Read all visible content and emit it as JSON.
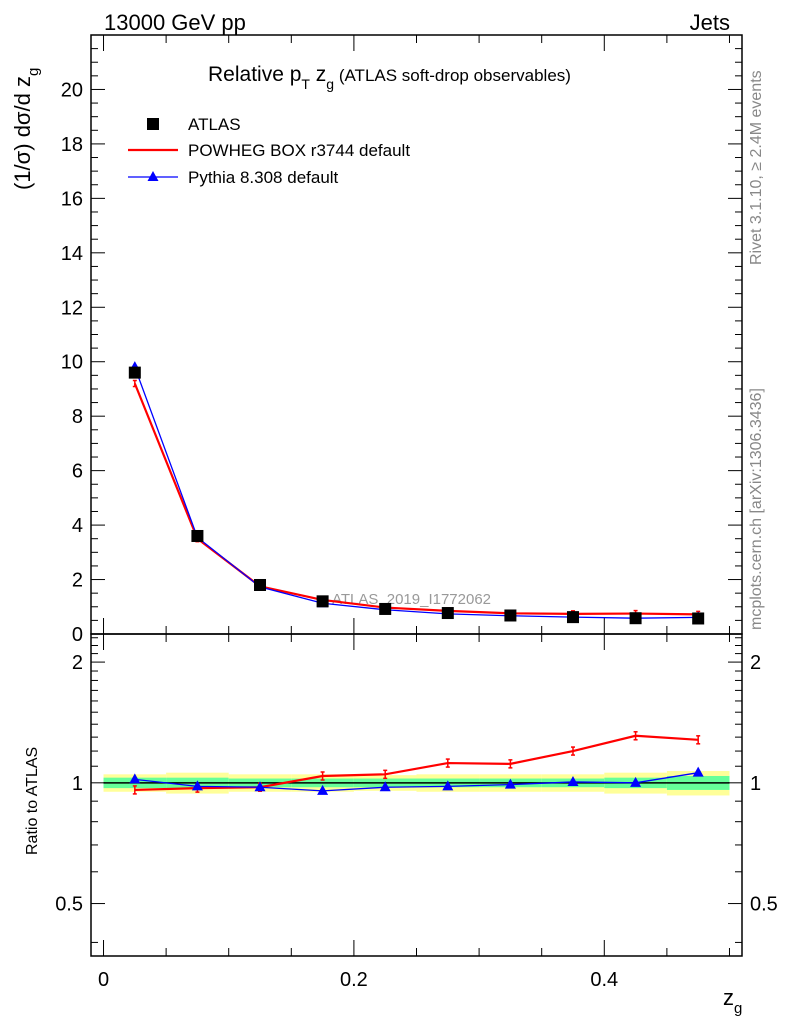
{
  "header": {
    "left": "13000 GeV pp",
    "right": "Jets"
  },
  "side_labels": {
    "rivet": "Rivet 3.1.10, ≥ 2.4M events",
    "mcplots": "mcplots.cern.ch [arXiv:1306.3436]"
  },
  "chart_data": [
    {
      "type": "line",
      "title": {
        "main": "Relative p",
        "sub1": "T",
        "mid": " z",
        "sub2": "g",
        "tail": " (ATLAS soft-drop observables)"
      },
      "analysis_label": "ATLAS_2019_I1772062",
      "ylabel": {
        "main": "(1/σ) dσ/d z",
        "sub": "g"
      },
      "xlabel": {
        "main": "z",
        "sub": "g"
      },
      "xlim": [
        -0.01,
        0.51
      ],
      "ylim": [
        0,
        22
      ],
      "x_ticks": [
        0,
        0.2,
        0.4
      ],
      "x_tick_labels": [
        "0",
        "0.2",
        "0.4"
      ],
      "y_ticks": [
        0,
        2,
        4,
        6,
        8,
        10,
        12,
        14,
        16,
        18,
        20
      ],
      "y_tick_labels": [
        "0",
        "2",
        "4",
        "6",
        "8",
        "10",
        "12",
        "14",
        "16",
        "18",
        "20"
      ],
      "x": [
        0.025,
        0.075,
        0.125,
        0.175,
        0.225,
        0.275,
        0.325,
        0.375,
        0.425,
        0.475
      ],
      "series": [
        {
          "name": "ATLAS",
          "color": "#000000",
          "marker": "square",
          "values": [
            9.6,
            3.6,
            1.8,
            1.2,
            0.92,
            0.77,
            0.68,
            0.62,
            0.58,
            0.57
          ]
        },
        {
          "name": "POWHEG BOX r3744 default",
          "color": "#ff0000",
          "marker": "none",
          "values": [
            9.2,
            3.5,
            1.75,
            1.25,
            0.97,
            0.85,
            0.76,
            0.74,
            0.75,
            0.72
          ]
        },
        {
          "name": "Pythia 8.308 default",
          "color": "#0000ff",
          "marker": "triangle",
          "values": [
            9.8,
            3.55,
            1.73,
            1.13,
            0.89,
            0.74,
            0.67,
            0.62,
            0.58,
            0.61
          ]
        }
      ],
      "legend": [
        "ATLAS",
        "POWHEG BOX r3744 default",
        "Pythia 8.308 default"
      ],
      "legend_position": "top-left",
      "grid": false
    },
    {
      "type": "line",
      "ylabel": "Ratio to ATLAS",
      "ylim": [
        0.37,
        2.35
      ],
      "y_scale": "log",
      "y_ticks": [
        0.5,
        1,
        2
      ],
      "y_tick_labels": [
        "0.5",
        "1",
        "2"
      ],
      "x": [
        0.025,
        0.075,
        0.125,
        0.175,
        0.225,
        0.275,
        0.325,
        0.375,
        0.425,
        0.475
      ],
      "reference_line": 1,
      "uncertainty_bands": {
        "inner_color": "#66ff99",
        "outer_color": "#ffff99",
        "bins": [
          {
            "lo": 0.0,
            "hi": 0.05,
            "inner": 0.03,
            "outer": 0.05
          },
          {
            "lo": 0.05,
            "hi": 0.1,
            "inner": 0.03,
            "outer": 0.06
          },
          {
            "lo": 0.1,
            "hi": 0.15,
            "inner": 0.025,
            "outer": 0.05
          },
          {
            "lo": 0.15,
            "hi": 0.2,
            "inner": 0.025,
            "outer": 0.05
          },
          {
            "lo": 0.2,
            "hi": 0.25,
            "inner": 0.025,
            "outer": 0.045
          },
          {
            "lo": 0.25,
            "hi": 0.3,
            "inner": 0.025,
            "outer": 0.05
          },
          {
            "lo": 0.3,
            "hi": 0.35,
            "inner": 0.025,
            "outer": 0.05
          },
          {
            "lo": 0.35,
            "hi": 0.4,
            "inner": 0.025,
            "outer": 0.05
          },
          {
            "lo": 0.4,
            "hi": 0.45,
            "inner": 0.03,
            "outer": 0.06
          },
          {
            "lo": 0.45,
            "hi": 0.5,
            "inner": 0.04,
            "outer": 0.07
          }
        ]
      },
      "series": [
        {
          "name": "POWHEG BOX r3744 default",
          "color": "#ff0000",
          "values": [
            0.96,
            0.97,
            0.975,
            1.04,
            1.05,
            1.12,
            1.115,
            1.2,
            1.31,
            1.28
          ]
        },
        {
          "name": "Pythia 8.308 default",
          "color": "#0000ff",
          "values": [
            1.02,
            0.98,
            0.975,
            0.955,
            0.975,
            0.98,
            0.99,
            1.005,
            1.0,
            1.06
          ]
        }
      ]
    }
  ]
}
